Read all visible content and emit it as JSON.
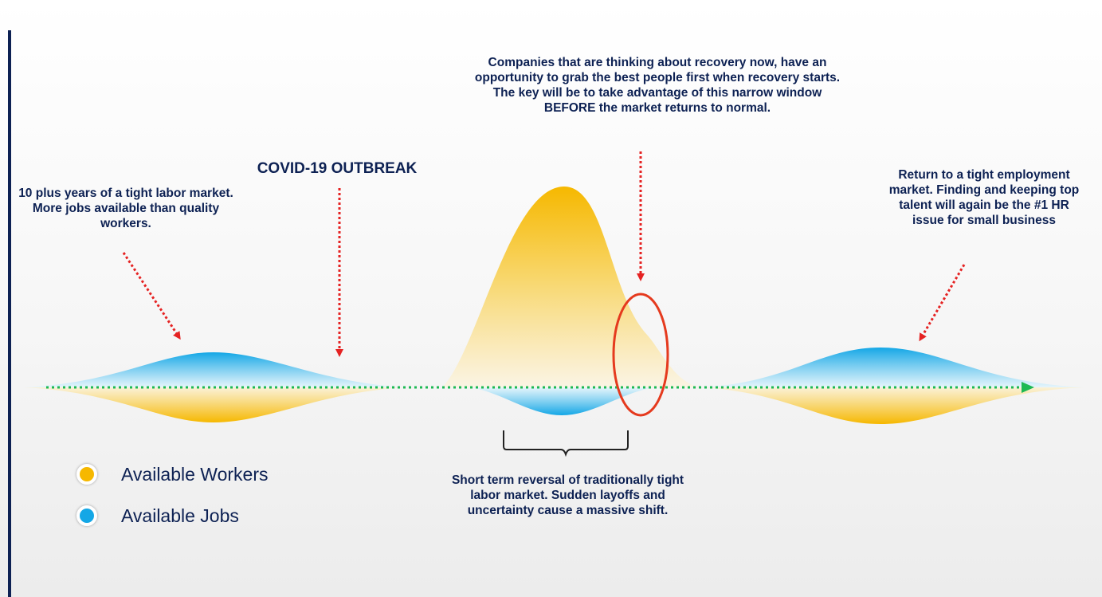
{
  "annotations": {
    "outbreak": "COVID-19 OUTBREAK",
    "tight_market": "10 plus years of a tight labor market. More jobs available than quality workers.",
    "recovery": "Companies that are thinking about recovery now, have an opportunity to grab the best people first when recovery starts.  The key will be to take advantage of this narrow window BEFORE the market returns to normal.",
    "return": "Return to a tight employment market. Finding and keeping top talent will again be the #1 HR issue for small business",
    "reversal": "Short term reversal of traditionally tight labor market. Sudden layoffs and uncertainty cause a massive shift."
  },
  "legend": [
    {
      "label": "Available Workers",
      "color": "#f6b800"
    },
    {
      "label": "Available Jobs",
      "color": "#14a7e6"
    }
  ],
  "colors": {
    "workers": "#f6b800",
    "jobs": "#14a7e6",
    "pointer_arrow": "#e52222",
    "timeline_arrow": "#1db954",
    "highlight_ring": "#e53a1e",
    "text": "#0d2153"
  }
}
